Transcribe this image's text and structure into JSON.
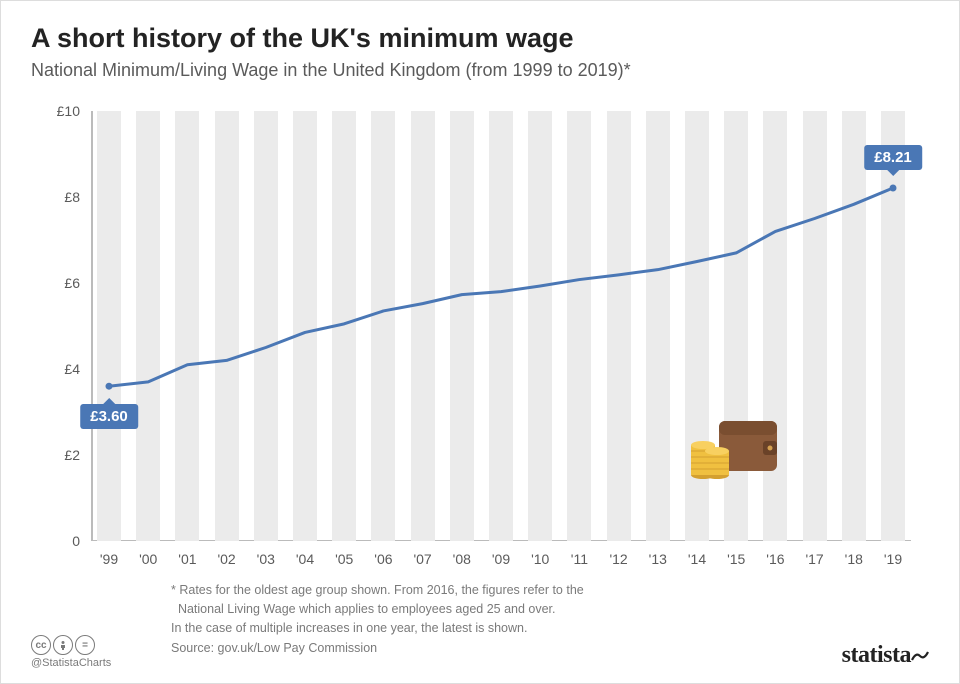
{
  "title": "A short history of the UK's minimum wage",
  "subtitle": "National Minimum/Living Wage in the United Kingdom (from 1999 to 2019)*",
  "chart": {
    "type": "line",
    "x_labels": [
      "'99",
      "'00",
      "'01",
      "'02",
      "'03",
      "'04",
      "'05",
      "'06",
      "'07",
      "'08",
      "'09",
      "'10",
      "'11",
      "'12",
      "'13",
      "'14",
      "'15",
      "'16",
      "'17",
      "'18",
      "'19"
    ],
    "y_values": [
      3.6,
      3.7,
      4.1,
      4.2,
      4.5,
      4.85,
      5.05,
      5.35,
      5.52,
      5.73,
      5.8,
      5.93,
      6.08,
      6.19,
      6.31,
      6.5,
      6.7,
      7.2,
      7.5,
      7.83,
      8.21
    ],
    "ylim": [
      0,
      10
    ],
    "ytick_step": 2,
    "y_prefix": "£",
    "line_color": "#4a77b5",
    "line_width": 3,
    "bg_bar_color": "#ebebeb",
    "label_start": "£3.60",
    "label_end": "£8.21",
    "axis_color": "#bbb",
    "tick_font_size": 14,
    "background": "#ffffff"
  },
  "footnote_line1": "* Rates for the oldest age group shown. From 2016, the figures refer to the",
  "footnote_line2": "  National Living Wage which applies to employees aged 25 and over.",
  "footnote_line3": "In the case of multiple increases in one year, the latest is shown.",
  "source": "Source: gov.uk/Low Pay Commission",
  "handle": "@StatistaCharts",
  "brand": "statista",
  "cc_icons": [
    "cc",
    "by",
    "nd"
  ]
}
